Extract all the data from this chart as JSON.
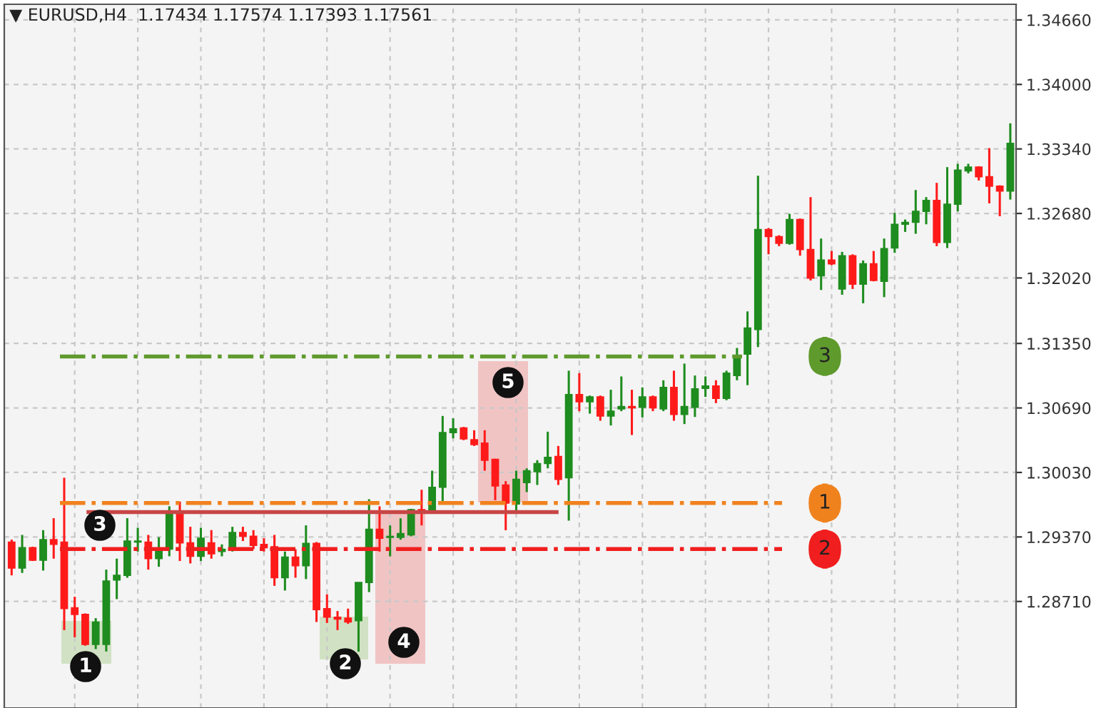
{
  "chart_data": {
    "type": "candlestick",
    "title": "▼ EURUSD,H4  1.17434 1.17574 1.17393 1.17561",
    "categories": [
      null,
      null,
      null,
      null,
      null,
      null,
      null,
      null,
      null,
      null,
      null,
      null,
      null,
      null,
      null,
      null,
      null,
      null,
      null,
      null,
      null,
      null,
      null,
      null,
      null,
      null,
      null,
      null,
      null,
      null,
      null,
      null,
      null,
      null,
      null,
      null,
      null,
      null,
      null,
      null,
      null,
      null,
      null,
      null,
      null,
      null,
      null,
      null,
      null,
      null,
      null,
      null,
      null,
      null,
      null,
      null,
      null,
      null,
      null,
      null,
      null,
      null,
      null,
      null,
      null,
      null,
      null,
      null,
      null,
      null,
      null,
      null,
      null,
      null,
      null,
      null,
      null,
      null,
      null,
      null,
      null,
      null,
      null,
      null,
      null,
      null,
      null,
      null,
      null,
      null,
      null,
      null,
      null,
      null,
      null,
      null
    ],
    "ohlc": [
      [
        1.29318,
        1.29343,
        1.28977,
        1.29051
      ],
      [
        1.29051,
        1.29391,
        1.29002,
        1.2926
      ],
      [
        1.2926,
        1.2927,
        1.29124,
        1.29133
      ],
      [
        1.29133,
        1.2944,
        1.29026,
        1.29343
      ],
      [
        1.29343,
        1.29562,
        1.29148,
        1.29294
      ],
      [
        1.29318,
        1.29976,
        1.28417,
        1.28637
      ],
      [
        1.28646,
        1.28758,
        1.28344,
        1.28578
      ],
      [
        1.28578,
        1.28588,
        1.28257,
        1.28271
      ],
      [
        1.28271,
        1.28539,
        1.28223,
        1.285
      ],
      [
        1.28271,
        1.29036,
        1.28198,
        1.28919
      ],
      [
        1.28929,
        1.29148,
        1.28734,
        1.28977
      ],
      [
        1.28977,
        1.29562,
        1.28953,
        1.29328
      ],
      [
        1.29318,
        1.29464,
        1.29221,
        1.29328
      ],
      [
        1.29318,
        1.29391,
        1.29036,
        1.29148
      ],
      [
        1.29148,
        1.29367,
        1.29065,
        1.29231
      ],
      [
        1.29245,
        1.29684,
        1.29172,
        1.29611
      ],
      [
        1.29611,
        1.29732,
        1.29124,
        1.29309
      ],
      [
        1.29309,
        1.29474,
        1.29099,
        1.29172
      ],
      [
        1.29172,
        1.29464,
        1.29124,
        1.29357
      ],
      [
        1.29309,
        1.2944,
        1.29148,
        1.29197
      ],
      [
        1.29221,
        1.29294,
        1.29172,
        1.29245
      ],
      [
        1.29245,
        1.29474,
        1.29221,
        1.29416
      ],
      [
        1.29416,
        1.29474,
        1.29328,
        1.29377
      ],
      [
        1.29377,
        1.2944,
        1.29245,
        1.29284
      ],
      [
        1.29294,
        1.29357,
        1.29221,
        1.2926
      ],
      [
        1.2927,
        1.29391,
        1.2887,
        1.28953
      ],
      [
        1.28953,
        1.29221,
        1.28822,
        1.29163
      ],
      [
        1.29163,
        1.29245,
        1.28953,
        1.29075
      ],
      [
        1.29075,
        1.29489,
        1.28939,
        1.29304
      ],
      [
        1.29304,
        1.29318,
        1.285,
        1.28627
      ],
      [
        1.28637,
        1.28783,
        1.2849,
        1.28549
      ],
      [
        1.28549,
        1.28612,
        1.28417,
        1.28529
      ],
      [
        1.28539,
        1.28637,
        1.28481,
        1.285
      ],
      [
        1.28514,
        1.28904,
        1.28197,
        1.28904
      ],
      [
        1.28904,
        1.29756,
        1.28806,
        1.29449
      ],
      [
        1.29449,
        1.29683,
        1.2922,
        1.29357
      ],
      [
        1.29366,
        1.29488,
        1.29171,
        1.29376
      ],
      [
        1.29366,
        1.29561,
        1.29342,
        1.29405
      ],
      [
        1.29391,
        1.29658,
        1.29376,
        1.29649
      ],
      [
        1.29649,
        1.29853,
        1.29488,
        1.29629
      ],
      [
        1.29649,
        1.30048,
        1.2961,
        1.29878
      ],
      [
        1.29878,
        1.30608,
        1.29732,
        1.30438
      ],
      [
        1.30438,
        1.30584,
        1.30379,
        1.30477
      ],
      [
        1.30486,
        1.30496,
        1.3036,
        1.30374
      ],
      [
        1.30365,
        1.30462,
        1.30301,
        1.30316
      ],
      [
        1.30331,
        1.30462,
        1.30048,
        1.30155
      ],
      [
        1.30165,
        1.3017,
        1.29746,
        1.29892
      ],
      [
        1.29902,
        1.29941,
        1.29439,
        1.29717
      ],
      [
        1.29707,
        1.30048,
        1.29634,
        1.2996
      ],
      [
        1.29926,
        1.30072,
        1.29829,
        1.30048
      ],
      [
        1.30038,
        1.30155,
        1.29902,
        1.30121
      ],
      [
        1.30121,
        1.30447,
        1.30072,
        1.30184
      ],
      [
        1.30194,
        1.30301,
        1.29902,
        1.2996
      ],
      [
        1.29975,
        1.31071,
        1.29537,
        1.30827
      ],
      [
        1.30827,
        1.31046,
        1.30657,
        1.30754
      ],
      [
        1.30754,
        1.30817,
        1.30632,
        1.30803
      ],
      [
        1.30803,
        1.30817,
        1.30559,
        1.30608
      ],
      [
        1.30608,
        1.30876,
        1.30511,
        1.30657
      ],
      [
        1.30681,
        1.31012,
        1.30657,
        1.30705
      ],
      [
        1.30705,
        1.30876,
        1.30413,
        1.30691
      ],
      [
        1.30696,
        1.309,
        1.30593,
        1.30803
      ],
      [
        1.30803,
        1.30817,
        1.30657,
        1.30691
      ],
      [
        1.30681,
        1.30973,
        1.30657,
        1.309
      ],
      [
        1.309,
        1.31071,
        1.30559,
        1.30623
      ],
      [
        1.30623,
        1.31144,
        1.30525,
        1.30705
      ],
      [
        1.30696,
        1.31022,
        1.30598,
        1.30886
      ],
      [
        1.3089,
        1.31012,
        1.30803,
        1.30915
      ],
      [
        1.30915,
        1.30973,
        1.30739,
        1.30788
      ],
      [
        1.30788,
        1.31071,
        1.30769,
        1.31046
      ],
      [
        1.31022,
        1.31304,
        1.30973,
        1.31217
      ],
      [
        1.3124,
        1.31678,
        1.30923,
        1.31507
      ],
      [
        1.31493,
        1.33066,
        1.31313,
        1.32516
      ],
      [
        1.32516,
        1.3253,
        1.32262,
        1.32443
      ],
      [
        1.32443,
        1.32457,
        1.32345,
        1.32374
      ],
      [
        1.32374,
        1.32676,
        1.3236,
        1.32618
      ],
      [
        1.32618,
        1.32628,
        1.32248,
        1.32311
      ],
      [
        1.32311,
        1.32847,
        1.31994,
        1.32019
      ],
      [
        1.32043,
        1.32423,
        1.31897,
        1.32204
      ],
      [
        1.32204,
        1.32296,
        1.3215,
        1.32165
      ],
      [
        1.31907,
        1.32287,
        1.31848,
        1.32248
      ],
      [
        1.32248,
        1.32262,
        1.31907,
        1.31956
      ],
      [
        1.31956,
        1.32199,
        1.31761,
        1.32165
      ],
      [
        1.32165,
        1.32296,
        1.31985,
        1.31994
      ],
      [
        1.31985,
        1.32423,
        1.31824,
        1.32321
      ],
      [
        1.32326,
        1.32686,
        1.32277,
        1.32569
      ],
      [
        1.32569,
        1.32618,
        1.32491,
        1.32589
      ],
      [
        1.32589,
        1.3292,
        1.32472,
        1.32701
      ],
      [
        1.32701,
        1.32847,
        1.32569,
        1.32813
      ],
      [
        1.32813,
        1.32993,
        1.32345,
        1.32384
      ],
      [
        1.32384,
        1.33154,
        1.32326,
        1.32774
      ],
      [
        1.32774,
        1.33188,
        1.32701,
        1.33124
      ],
      [
        1.33115,
        1.33188,
        1.3309,
        1.33154
      ],
      [
        1.33154,
        1.33163,
        1.33017,
        1.33056
      ],
      [
        1.33056,
        1.33348,
        1.32783,
        1.32959
      ],
      [
        1.32959,
        1.32968,
        1.32652,
        1.3291
      ],
      [
        1.3291,
        1.33602,
        1.32822,
        1.33397
      ]
    ],
    "colors": [
      "#ff1a1a",
      "#1e8c1e",
      "#ff1a1a",
      "#1e8c1e",
      "#ff1a1a",
      "#ff1a1a",
      "#ff1a1a",
      "#ff1a1a",
      "#1e8c1e",
      "#1e8c1e",
      "#1e8c1e",
      "#1e8c1e",
      "#1e8c1e",
      "#ff1a1a",
      "#1e8c1e",
      "#1e8c1e",
      "#ff1a1a",
      "#ff1a1a",
      "#1e8c1e",
      "#ff1a1a",
      "#1e8c1e",
      "#1e8c1e",
      "#ff1a1a",
      "#ff1a1a",
      "#ff1a1a",
      "#ff1a1a",
      "#1e8c1e",
      "#ff1a1a",
      "#1e8c1e",
      "#ff1a1a",
      "#ff1a1a",
      "#ff1a1a",
      "#ff1a1a",
      "#1e8c1e",
      "#1e8c1e",
      "#ff1a1a",
      "#1e8c1e",
      "#1e8c1e",
      "#1e8c1e",
      "#ff1a1a",
      "#1e8c1e",
      "#1e8c1e",
      "#1e8c1e",
      "#ff1a1a",
      "#ff1a1a",
      "#ff1a1a",
      "#ff1a1a",
      "#ff1a1a",
      "#1e8c1e",
      "#1e8c1e",
      "#1e8c1e",
      "#1e8c1e",
      "#ff1a1a",
      "#1e8c1e",
      "#ff1a1a",
      "#1e8c1e",
      "#ff1a1a",
      "#1e8c1e",
      "#1e8c1e",
      "#ff1a1a",
      "#1e8c1e",
      "#ff1a1a",
      "#1e8c1e",
      "#ff1a1a",
      "#1e8c1e",
      "#1e8c1e",
      "#1e8c1e",
      "#ff1a1a",
      "#1e8c1e",
      "#1e8c1e",
      "#1e8c1e",
      "#1e8c1e",
      "#ff1a1a",
      "#ff1a1a",
      "#1e8c1e",
      "#ff1a1a",
      "#ff1a1a",
      "#1e8c1e",
      "#ff1a1a",
      "#1e8c1e",
      "#ff1a1a",
      "#1e8c1e",
      "#ff1a1a",
      "#1e8c1e",
      "#1e8c1e",
      "#1e8c1e",
      "#1e8c1e",
      "#1e8c1e",
      "#ff1a1a",
      "#1e8c1e",
      "#1e8c1e",
      "#1e8c1e",
      "#ff1a1a",
      "#ff1a1a",
      "#ff1a1a",
      "#1e8c1e"
    ],
    "ylim": [
      1.2762,
      1.3482
    ],
    "yticks": [
      {
        "value": 1.2871,
        "label": "1.28710"
      },
      {
        "value": 1.2937,
        "label": "1.29370"
      },
      {
        "value": 1.3003,
        "label": "1.30030"
      },
      {
        "value": 1.3069,
        "label": "1.30690"
      },
      {
        "value": 1.3135,
        "label": "1.31350"
      },
      {
        "value": 1.3202,
        "label": "1.32020"
      },
      {
        "value": 1.3268,
        "label": "1.32680"
      },
      {
        "value": 1.3334,
        "label": "1.33340"
      },
      {
        "value": 1.34,
        "label": "1.34000"
      },
      {
        "value": 1.3466,
        "label": "1.34660"
      }
    ],
    "grid": true,
    "tick_labels": "y",
    "ref_lines": [
      {
        "axis": "y",
        "value": 1.29717,
        "color": "#f0821e",
        "line_style": "dashdot"
      },
      {
        "axis": "y",
        "value": 1.29246,
        "color": "#f01e1e",
        "line_style": "dashdot"
      },
      {
        "axis": "y",
        "value": 1.31217,
        "color": "#5f9a2d",
        "line_style": "dashdot"
      },
      {
        "axis": "y",
        "value": 1.29625,
        "color": "#c84646",
        "line_style": "solid"
      }
    ],
    "annotations": [
      "1",
      "2",
      "3",
      "4",
      "5",
      "1",
      "2",
      "3"
    ]
  }
}
